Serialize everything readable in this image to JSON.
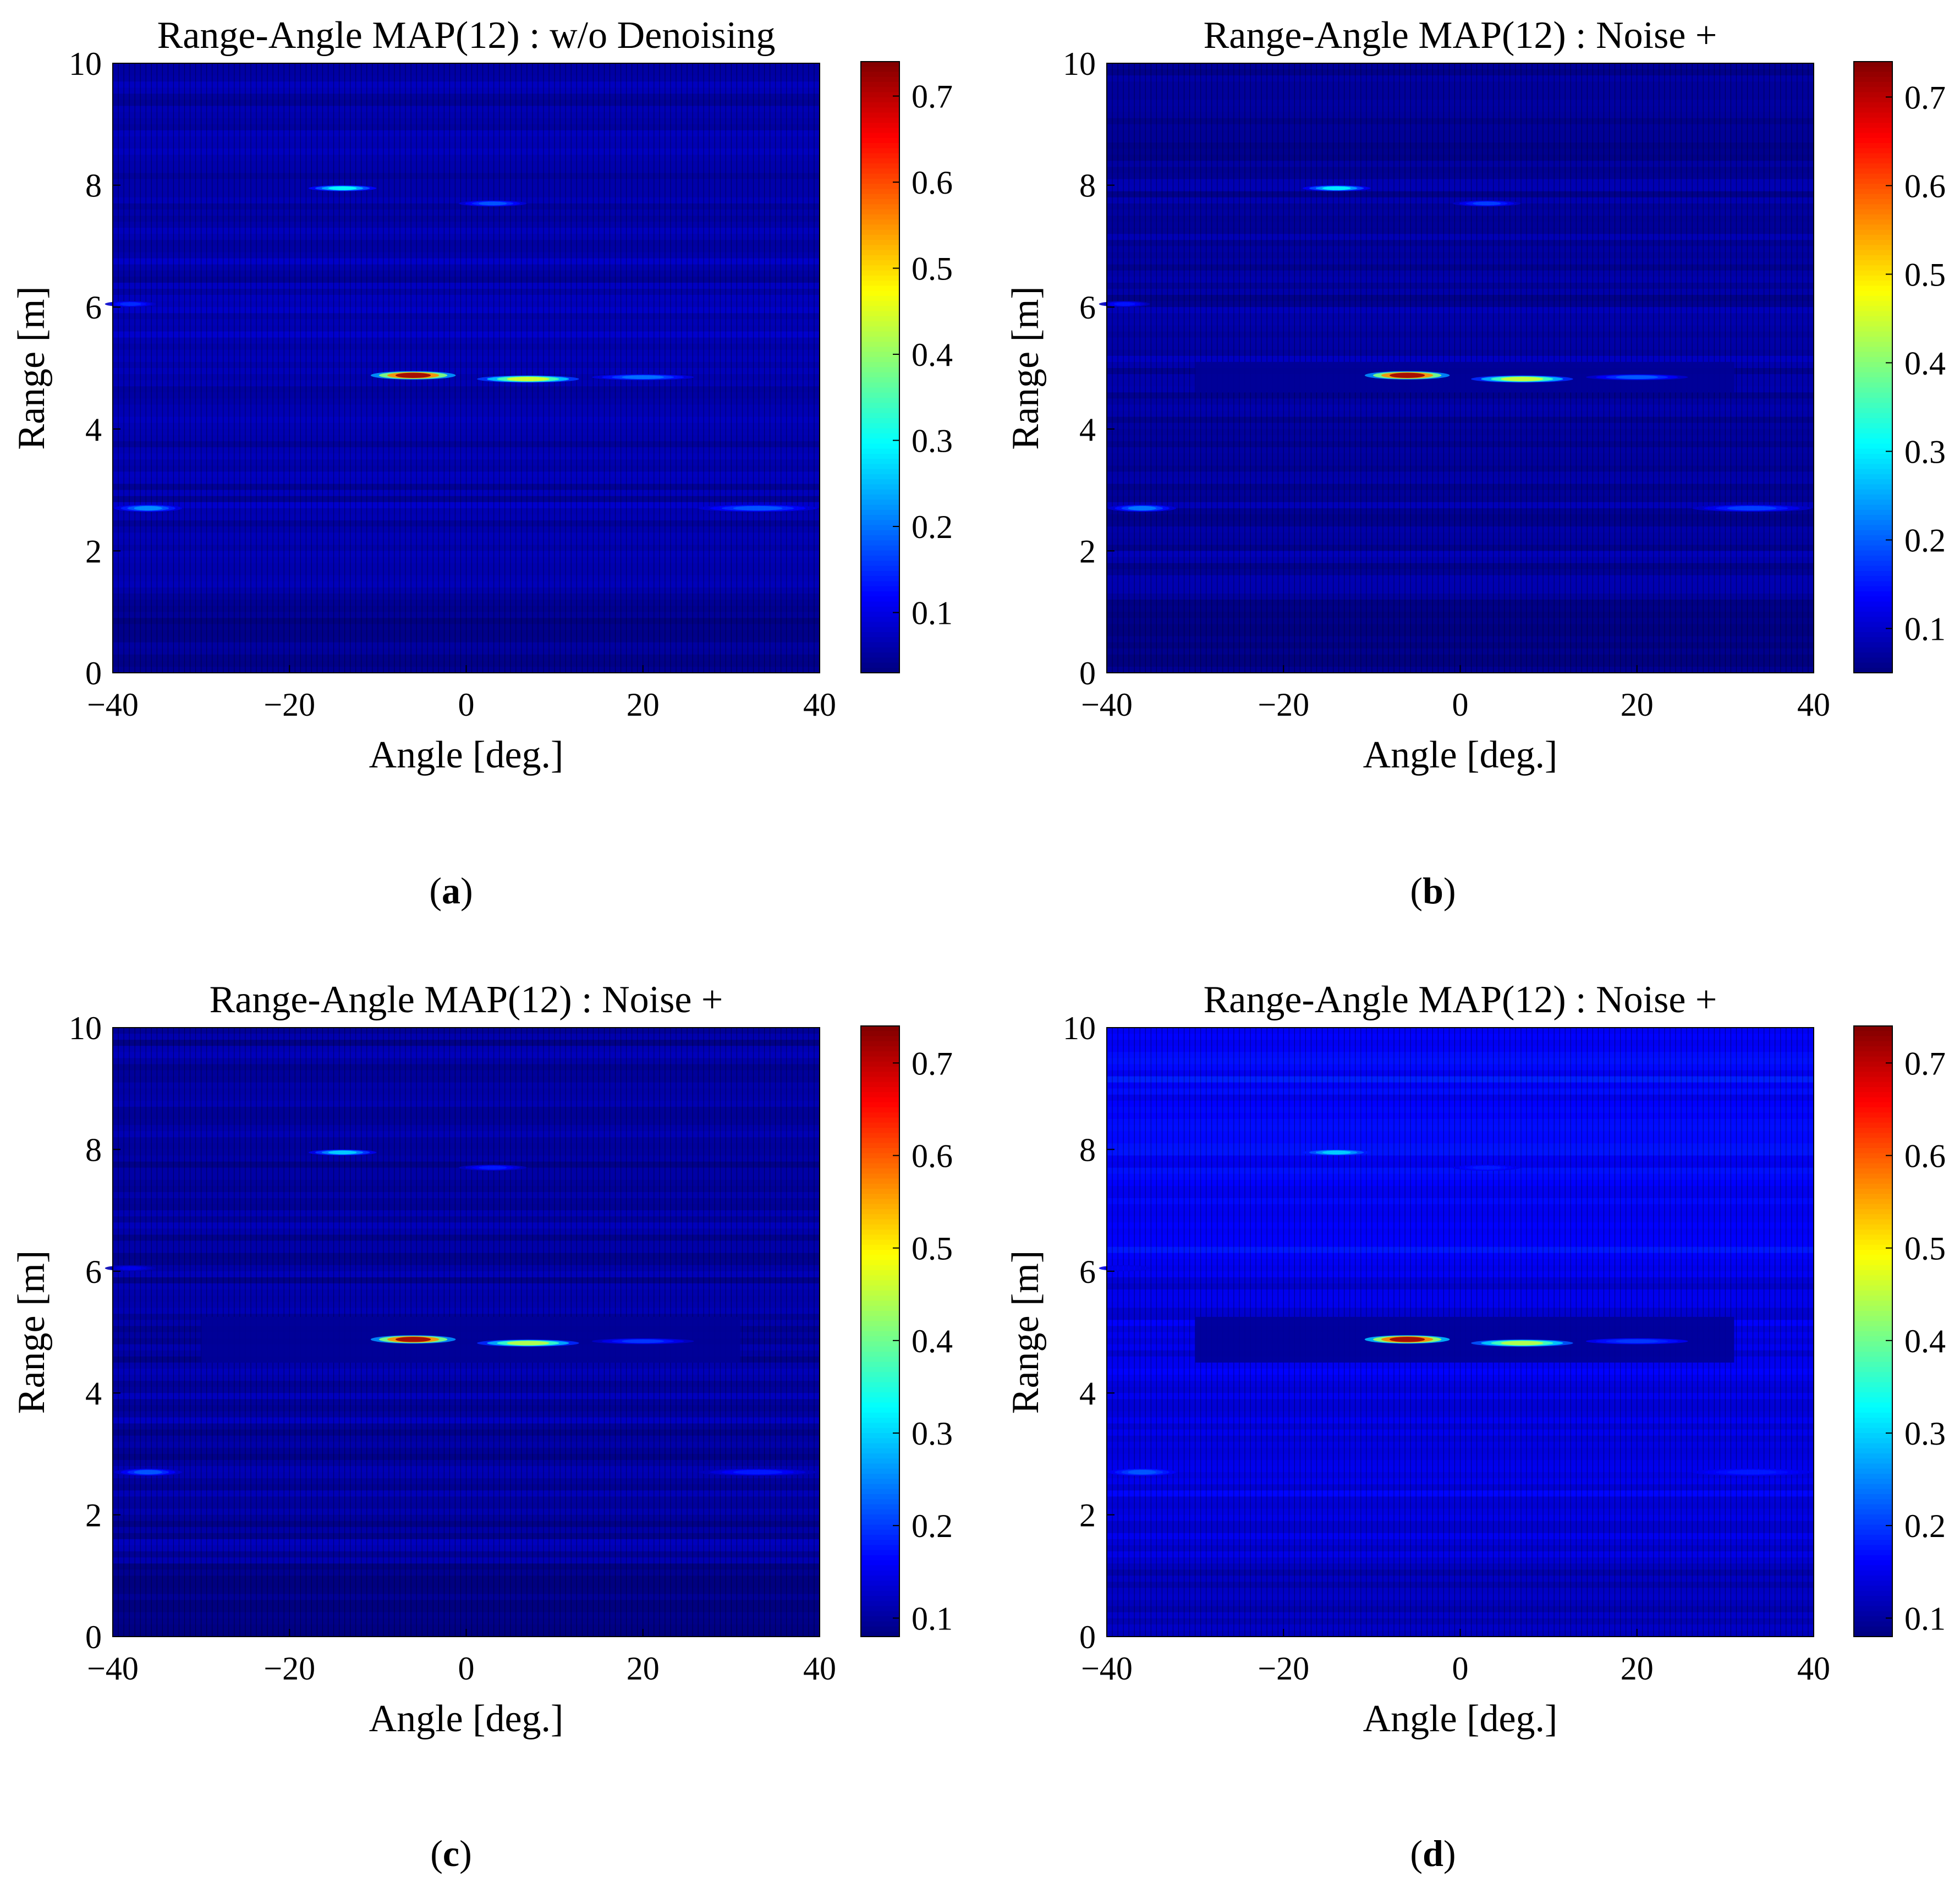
{
  "colormap": "jet",
  "colors": {
    "background_dark": "#000a55",
    "axis": "#000000",
    "tick": "#000000"
  },
  "chart_data": [
    {
      "id": "a",
      "type": "heatmap",
      "title": "Range-Angle MAP(12) : w/o Denoising",
      "xlabel": "Angle [deg.]",
      "ylabel": "Range [m]",
      "xlim": [
        -40,
        40
      ],
      "ylim": [
        0,
        10
      ],
      "xticks": [
        -40,
        -20,
        0,
        20,
        40
      ],
      "xtick_labels": [
        "−40",
        "−20",
        "0",
        "20",
        "40"
      ],
      "yticks": [
        0,
        2,
        4,
        6,
        8,
        10
      ],
      "ytick_labels": [
        "0",
        "2",
        "4",
        "6",
        "8",
        "10"
      ],
      "colorbar": {
        "range": [
          0.03,
          0.74
        ],
        "ticks": [
          0.1,
          0.2,
          0.3,
          0.4,
          0.5,
          0.6,
          0.7
        ],
        "tick_labels": [
          "0.1",
          "0.2",
          "0.3",
          "0.4",
          "0.5",
          "0.6",
          "0.7"
        ]
      },
      "background_level": 0.06,
      "hotspots": [
        {
          "angle": -6,
          "range": 4.88,
          "peak": 0.72,
          "angle_width": 5,
          "range_width": 0.07
        },
        {
          "angle": 7,
          "range": 4.82,
          "peak": 0.45,
          "angle_width": 6,
          "range_width": 0.06
        },
        {
          "angle": 20,
          "range": 4.85,
          "peak": 0.2,
          "angle_width": 6,
          "range_width": 0.05
        },
        {
          "angle": -14,
          "range": 7.95,
          "peak": 0.3,
          "angle_width": 4,
          "range_width": 0.05
        },
        {
          "angle": 3,
          "range": 7.7,
          "peak": 0.18,
          "angle_width": 4,
          "range_width": 0.05
        },
        {
          "angle": -36,
          "range": 2.7,
          "peak": 0.22,
          "angle_width": 4,
          "range_width": 0.06
        },
        {
          "angle": 33,
          "range": 2.7,
          "peak": 0.18,
          "angle_width": 7,
          "range_width": 0.06
        },
        {
          "angle": -38,
          "range": 6.05,
          "peak": 0.15,
          "angle_width": 3,
          "range_width": 0.05
        }
      ],
      "suppressed_region": null,
      "caption": "a"
    },
    {
      "id": "b",
      "type": "heatmap",
      "title": "Range-Angle MAP(12) : Noise +",
      "xlabel": "Angle [deg.]",
      "ylabel": "Range [m]",
      "xlim": [
        -40,
        40
      ],
      "ylim": [
        0,
        10
      ],
      "xticks": [
        -40,
        -20,
        0,
        20,
        40
      ],
      "xtick_labels": [
        "−40",
        "−20",
        "0",
        "20",
        "40"
      ],
      "yticks": [
        0,
        2,
        4,
        6,
        8,
        10
      ],
      "ytick_labels": [
        "0",
        "2",
        "4",
        "6",
        "8",
        "10"
      ],
      "colorbar": {
        "range": [
          0.05,
          0.74
        ],
        "ticks": [
          0.1,
          0.2,
          0.3,
          0.4,
          0.5,
          0.6,
          0.7
        ],
        "tick_labels": [
          "0.1",
          "0.2",
          "0.3",
          "0.4",
          "0.5",
          "0.6",
          "0.7"
        ]
      },
      "background_level": 0.07,
      "hotspots": [
        {
          "angle": -6,
          "range": 4.88,
          "peak": 0.72,
          "angle_width": 5,
          "range_width": 0.07
        },
        {
          "angle": 7,
          "range": 4.82,
          "peak": 0.45,
          "angle_width": 6,
          "range_width": 0.06
        },
        {
          "angle": 20,
          "range": 4.85,
          "peak": 0.2,
          "angle_width": 6,
          "range_width": 0.05
        },
        {
          "angle": -14,
          "range": 7.95,
          "peak": 0.3,
          "angle_width": 4,
          "range_width": 0.05
        },
        {
          "angle": 3,
          "range": 7.7,
          "peak": 0.18,
          "angle_width": 4,
          "range_width": 0.05
        },
        {
          "angle": -36,
          "range": 2.7,
          "peak": 0.22,
          "angle_width": 4,
          "range_width": 0.06
        },
        {
          "angle": 33,
          "range": 2.7,
          "peak": 0.18,
          "angle_width": 7,
          "range_width": 0.06
        },
        {
          "angle": -38,
          "range": 6.05,
          "peak": 0.15,
          "angle_width": 3,
          "range_width": 0.05
        }
      ],
      "suppressed_region": {
        "angle": [
          -30,
          31
        ],
        "range": [
          4.6,
          5.1
        ]
      },
      "caption": "b"
    },
    {
      "id": "c",
      "type": "heatmap",
      "title": "Range-Angle MAP(12) : Noise +",
      "xlabel": "Angle [deg.]",
      "ylabel": "Range [m]",
      "xlim": [
        -40,
        40
      ],
      "ylim": [
        0,
        10
      ],
      "xticks": [
        -40,
        -20,
        0,
        20,
        40
      ],
      "xtick_labels": [
        "−40",
        "−20",
        "0",
        "20",
        "40"
      ],
      "yticks": [
        0,
        2,
        4,
        6,
        8,
        10
      ],
      "ytick_labels": [
        "0",
        "2",
        "4",
        "6",
        "8",
        "10"
      ],
      "colorbar": {
        "range": [
          0.08,
          0.74
        ],
        "ticks": [
          0.1,
          0.2,
          0.3,
          0.4,
          0.5,
          0.6,
          0.7
        ],
        "tick_labels": [
          "0.1",
          "0.2",
          "0.3",
          "0.4",
          "0.5",
          "0.6",
          "0.7"
        ]
      },
      "background_level": 0.1,
      "hotspots": [
        {
          "angle": -6,
          "range": 4.88,
          "peak": 0.72,
          "angle_width": 5,
          "range_width": 0.07
        },
        {
          "angle": 7,
          "range": 4.82,
          "peak": 0.45,
          "angle_width": 6,
          "range_width": 0.06
        },
        {
          "angle": 20,
          "range": 4.85,
          "peak": 0.2,
          "angle_width": 6,
          "range_width": 0.05
        },
        {
          "angle": -14,
          "range": 7.95,
          "peak": 0.3,
          "angle_width": 4,
          "range_width": 0.05
        },
        {
          "angle": 3,
          "range": 7.7,
          "peak": 0.18,
          "angle_width": 4,
          "range_width": 0.05
        },
        {
          "angle": -36,
          "range": 2.7,
          "peak": 0.22,
          "angle_width": 4,
          "range_width": 0.06
        },
        {
          "angle": 33,
          "range": 2.7,
          "peak": 0.18,
          "angle_width": 7,
          "range_width": 0.06
        },
        {
          "angle": -38,
          "range": 6.05,
          "peak": 0.15,
          "angle_width": 3,
          "range_width": 0.05
        }
      ],
      "suppressed_region": {
        "angle": [
          -30,
          31
        ],
        "range": [
          4.5,
          5.25
        ]
      },
      "caption": "c"
    },
    {
      "id": "d",
      "type": "heatmap",
      "title": "Range-Angle MAP(12) : Noise +",
      "xlabel": "Angle [deg.]",
      "ylabel": "Range [m]",
      "xlim": [
        -40,
        40
      ],
      "ylim": [
        0,
        10
      ],
      "xticks": [
        -40,
        -20,
        0,
        20,
        40
      ],
      "xtick_labels": [
        "−40",
        "−20",
        "0",
        "20",
        "40"
      ],
      "yticks": [
        0,
        2,
        4,
        6,
        8,
        10
      ],
      "ytick_labels": [
        "0",
        "2",
        "4",
        "6",
        "8",
        "10"
      ],
      "colorbar": {
        "range": [
          0.08,
          0.74
        ],
        "ticks": [
          0.1,
          0.2,
          0.3,
          0.4,
          0.5,
          0.6,
          0.7
        ],
        "tick_labels": [
          "0.1",
          "0.2",
          "0.3",
          "0.4",
          "0.5",
          "0.6",
          "0.7"
        ]
      },
      "background_level": 0.14,
      "hotspots": [
        {
          "angle": -6,
          "range": 4.88,
          "peak": 0.72,
          "angle_width": 5,
          "range_width": 0.07
        },
        {
          "angle": 7,
          "range": 4.82,
          "peak": 0.45,
          "angle_width": 6,
          "range_width": 0.06
        },
        {
          "angle": 20,
          "range": 4.85,
          "peak": 0.2,
          "angle_width": 6,
          "range_width": 0.05
        },
        {
          "angle": -14,
          "range": 7.95,
          "peak": 0.3,
          "angle_width": 4,
          "range_width": 0.05
        },
        {
          "angle": 3,
          "range": 7.7,
          "peak": 0.18,
          "angle_width": 4,
          "range_width": 0.05
        },
        {
          "angle": -36,
          "range": 2.7,
          "peak": 0.22,
          "angle_width": 4,
          "range_width": 0.06
        },
        {
          "angle": 33,
          "range": 2.7,
          "peak": 0.18,
          "angle_width": 7,
          "range_width": 0.06
        },
        {
          "angle": -38,
          "range": 6.05,
          "peak": 0.15,
          "angle_width": 3,
          "range_width": 0.05
        }
      ],
      "suppressed_region": {
        "angle": [
          -30,
          31
        ],
        "range": [
          4.5,
          5.25
        ]
      },
      "caption": "d"
    }
  ]
}
